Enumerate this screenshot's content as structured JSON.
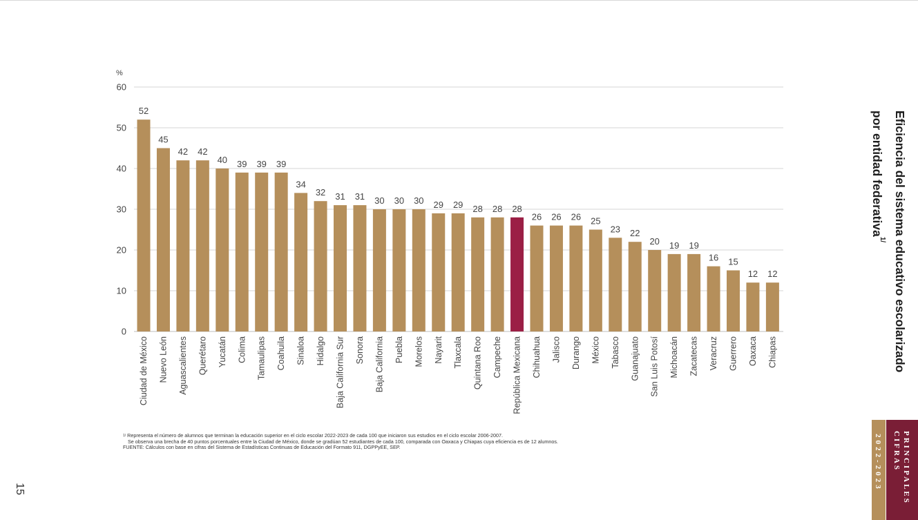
{
  "page": {
    "number": "15",
    "title_line1": "Eficiencia del sistema educativo escolarizado",
    "title_line2": "por entidad federativa",
    "title_superscript": "1/",
    "badge_year": "2022-2023",
    "badge_label_line1": "PRINCIPALES",
    "badge_label_line2": "CIFRAS"
  },
  "notes": {
    "footnote_mark": "1/",
    "footnote_line1": "Representa el número de alumnos que terminan la educación superior en el ciclo escolar 2022-2023 de cada 100 que iniciaron sus estudios en el ciclo escolar 2006-2007.",
    "footnote_line2": "Se observa una brecha de 40 puntos porcentuales entre la Ciudad de México, donde se gradúan 52 estudiantes de cada 100, comparada con Oaxaca y Chiapas cuya eficiencia es de 12 alumnos.",
    "source": "FUENTE: Cálculos con base en cifras del Sistema de Estadísticas Continuas de Educación del Formato 911, DGPPyEE, SEP."
  },
  "chart_data": {
    "type": "bar",
    "ylabel": "%",
    "ylim": [
      0,
      60
    ],
    "yticks": [
      0,
      10,
      20,
      30,
      40,
      50,
      60
    ],
    "grid": true,
    "colors": {
      "bar": "#b58f5b",
      "highlight": "#9b1f45",
      "grid": "#d4d4d4",
      "label": "#444444"
    },
    "highlight_category": "República Mexicana",
    "categories": [
      "Ciudad de México",
      "Nuevo León",
      "Aguascalientes",
      "Querétaro",
      "Yucatán",
      "Colima",
      "Tamaulipas",
      "Coahuila",
      "Sinaloa",
      "Hidalgo",
      "Baja California Sur",
      "Sonora",
      "Baja California",
      "Puebla",
      "Morelos",
      "Nayarit",
      "Tlaxcala",
      "Quintana Roo",
      "Campeche",
      "República Mexicana",
      "Chihuahua",
      "Jalisco",
      "Durango",
      "México",
      "Tabasco",
      "Guanajuato",
      "San Luis Potosí",
      "Michoacán",
      "Zacatecas",
      "Veracruz",
      "Guerrero",
      "Oaxaca",
      "Chiapas"
    ],
    "values": [
      52,
      45,
      42,
      42,
      40,
      39,
      39,
      39,
      34,
      32,
      31,
      31,
      30,
      30,
      30,
      29,
      29,
      28,
      28,
      28,
      26,
      26,
      26,
      25,
      23,
      22,
      20,
      19,
      19,
      16,
      15,
      12,
      12
    ]
  }
}
